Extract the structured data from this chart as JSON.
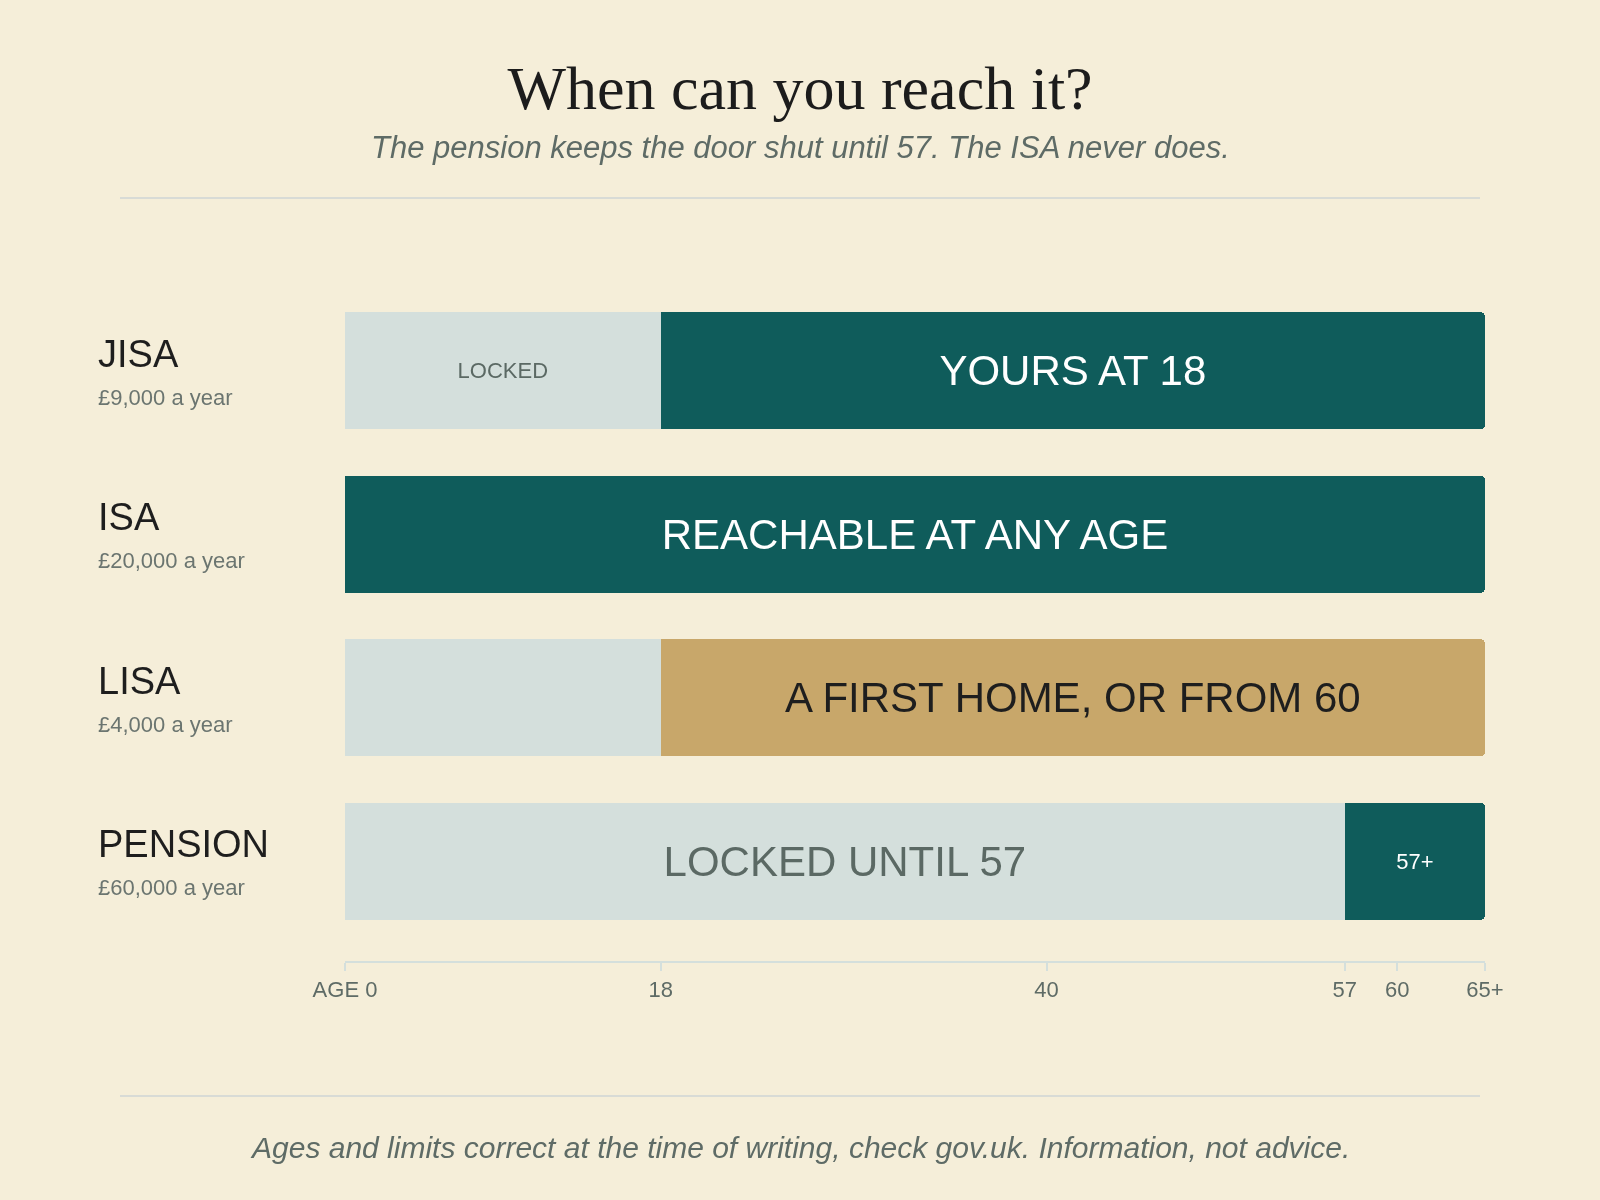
{
  "chart_data": {
    "type": "bar",
    "orientation": "horizontal",
    "stacked": true,
    "title": "When can you reach it?",
    "subtitle": "The pension keeps the door shut until 57. The ISA never does.",
    "categories": [
      "JISA\n£9,000 a year",
      "ISA\n£20,000 a year",
      "LISA\n£4,000 a year",
      "PENSION\n£60,000 a year"
    ],
    "series": [
      {
        "color": "#d4dfdc",
        "values": [
          18,
          null,
          18,
          57
        ],
        "value_labels": [
          "LOCKED",
          null,
          null,
          "LOCKED UNTIL 57"
        ]
      },
      {
        "colors": [
          "#0f5c5b",
          "#0f5c5b",
          "#c8a76a",
          "#0f5c5b"
        ],
        "values": [
          47,
          65,
          47,
          8
        ],
        "value_labels": [
          "YOURS AT 18",
          "REACHABLE AT ANY AGE",
          "A FIRST HOME, OR FROM 60",
          "57+"
        ]
      }
    ],
    "xlim": [
      0,
      65
    ],
    "xticks": [
      {
        "value": 0,
        "label": "AGE 0"
      },
      18,
      40,
      57,
      60,
      {
        "value": 65,
        "label": "65+"
      }
    ],
    "grid": false,
    "annotations": [
      "Ages and limits correct at the time of writing, check gov.uk. Information, not advice."
    ]
  }
}
